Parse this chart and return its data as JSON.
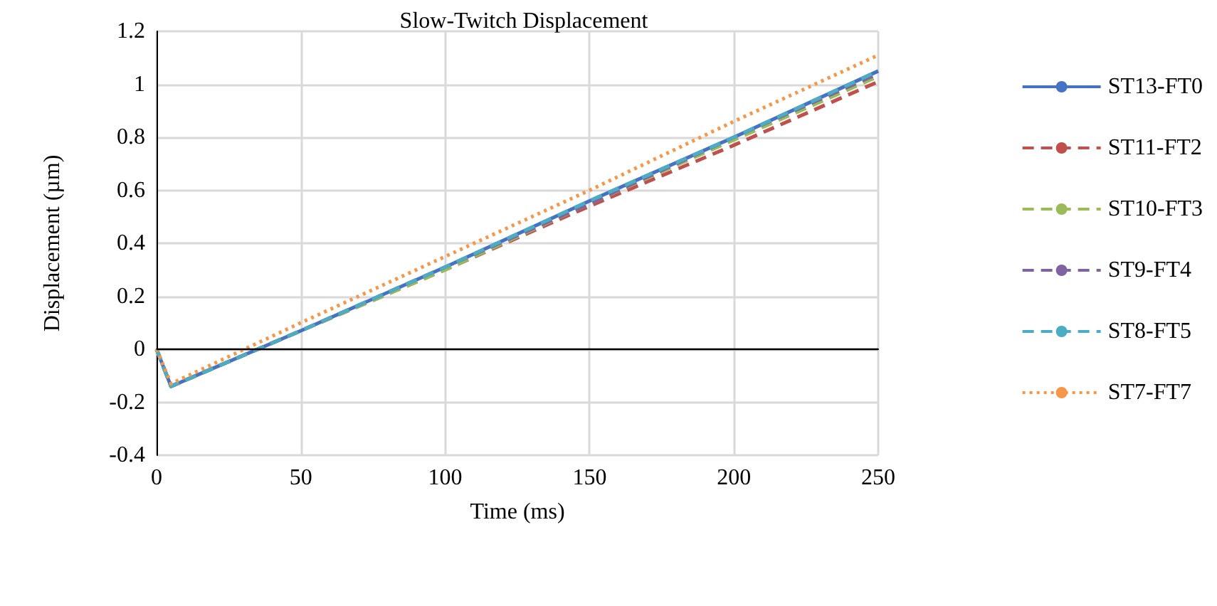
{
  "chart_data": {
    "type": "line",
    "title": "Slow-Twitch Displacement",
    "xlabel": "Time (ms)",
    "ylabel": "Displacement (µm)",
    "x": [
      0,
      5,
      50,
      100,
      150,
      200,
      250
    ],
    "series": [
      {
        "name": "ST13-FT0",
        "color": "#4472c4",
        "line_style": "solid",
        "values": [
          0,
          -0.14,
          0.07,
          0.31,
          0.56,
          0.8,
          1.05
        ]
      },
      {
        "name": "ST11-FT2",
        "color": "#c0504d",
        "line_style": "dashed",
        "values": [
          0,
          -0.14,
          0.07,
          0.3,
          0.54,
          0.77,
          1.01
        ]
      },
      {
        "name": "ST10-FT3",
        "color": "#9bbb59",
        "line_style": "dashed",
        "values": [
          0,
          -0.14,
          0.07,
          0.3,
          0.55,
          0.79,
          1.03
        ]
      },
      {
        "name": "ST9-FT4",
        "color": "#8064a2",
        "line_style": "dashed",
        "values": [
          0,
          -0.14,
          0.07,
          0.31,
          0.55,
          0.8,
          1.04
        ]
      },
      {
        "name": "ST8-FT5",
        "color": "#4bacc6",
        "line_style": "dashed",
        "values": [
          0,
          -0.14,
          0.07,
          0.31,
          0.56,
          0.8,
          1.05
        ]
      },
      {
        "name": "ST7-FT7",
        "color": "#f79646",
        "line_style": "dotted",
        "values": [
          0,
          -0.13,
          0.1,
          0.35,
          0.6,
          0.86,
          1.11
        ]
      }
    ],
    "xlim": [
      0,
      250
    ],
    "xticks": [
      0,
      50,
      100,
      150,
      200,
      250
    ],
    "ylim": [
      -0.4,
      1.2
    ],
    "yticks": [
      -0.4,
      -0.2,
      0,
      0.2,
      0.4,
      0.6,
      0.8,
      1,
      1.2
    ],
    "ref_lines": [
      {
        "axis": "y",
        "value": 0,
        "color": "#000000"
      }
    ],
    "grid": true,
    "legend": "right",
    "marker": "none"
  }
}
